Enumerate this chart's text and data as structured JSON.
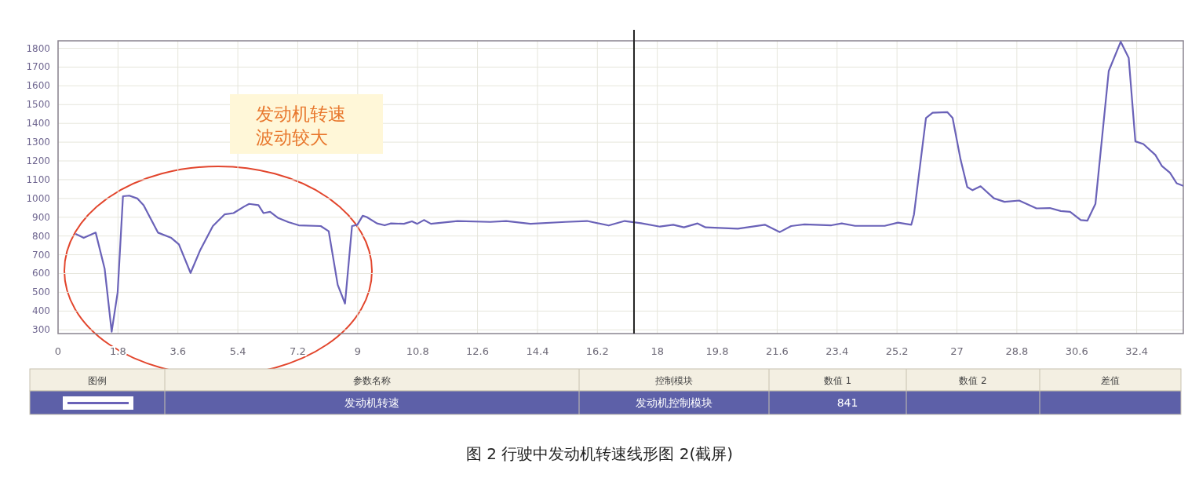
{
  "chart_data": {
    "type": "line",
    "title": "图 2  行驶中发动机转速线形图 2(截屏)",
    "annotations": [
      "发动机转速",
      "波动较大",
      "图例",
      "参数名称",
      "控制模块",
      "数值 1",
      "数值 2",
      "差值",
      "发动机控制模块",
      "841"
    ],
    "x": [
      0.54,
      0.77,
      1.13,
      1.4,
      1.61,
      1.79,
      1.95,
      2.14,
      2.38,
      2.57,
      3.0,
      3.4,
      3.63,
      3.98,
      4.26,
      4.65,
      5.0,
      5.27,
      5.59,
      5.74,
      6.02,
      6.17,
      6.37,
      6.6,
      6.92,
      7.23,
      7.89,
      8.13,
      8.4,
      8.62,
      8.83,
      8.99,
      9.15,
      9.27,
      9.58,
      9.81,
      10.0,
      10.39,
      10.63,
      10.79,
      10.99,
      11.2,
      12.0,
      12.98,
      13.46,
      14.19,
      15.24,
      15.89,
      16.54,
      17.02,
      17.51,
      18.08,
      18.48,
      18.8,
      19.21,
      19.45,
      20.42,
      21.23,
      21.68,
      22.02,
      22.42,
      23.23,
      23.54,
      23.94,
      24.83,
      25.23,
      25.63,
      25.71,
      26.07,
      26.27,
      26.71,
      26.87,
      27.11,
      27.31,
      27.47,
      27.71,
      28.11,
      28.43,
      28.87,
      29.39,
      29.79,
      30.12,
      30.4,
      30.72,
      30.92,
      31.16,
      31.56,
      31.92,
      32.16,
      32.36,
      32.6,
      32.96,
      33.16,
      33.4,
      33.6,
      33.8
    ],
    "series": [
      {
        "name": "发动机转速",
        "color": "#6a62b8",
        "values": [
          810,
          790,
          818,
          625,
          290,
          500,
          1012,
          1015,
          1000,
          964,
          818,
          790,
          755,
          603,
          721,
          853,
          915,
          922,
          957,
          971,
          964,
          922,
          929,
          897,
          874,
          857,
          853,
          825,
          540,
          440,
          853,
          860,
          908,
          901,
          867,
          857,
          867,
          865,
          878,
          865,
          885,
          865,
          880,
          875,
          880,
          865,
          875,
          880,
          856,
          880,
          868,
          850,
          860,
          846,
          867,
          846,
          839,
          860,
          821,
          853,
          862,
          857,
          867,
          854,
          854,
          871,
          860,
          915,
          1429,
          1457,
          1460,
          1429,
          1207,
          1061,
          1044,
          1065,
          1001,
          982,
          989,
          947,
          949,
          933,
          929,
          885,
          882,
          971,
          1679,
          1835,
          1749,
          1304,
          1290,
          1232,
          1172,
          1137,
          1081,
          1067
        ]
      }
    ],
    "xlim": [
      0,
      33.8
    ],
    "ylim": [
      280,
      1840
    ],
    "xticks": [
      0,
      1.8,
      3.6,
      5.4,
      7.2,
      9,
      10.8,
      12.6,
      14.4,
      16.2,
      18,
      19.8,
      21.6,
      23.4,
      25.2,
      27,
      28.8,
      30.6,
      32.4
    ],
    "yticks": [
      300,
      400,
      500,
      600,
      700,
      800,
      900,
      1000,
      1100,
      1200,
      1300,
      1400,
      1500,
      1600,
      1700,
      1800
    ],
    "ref_lines": [
      {
        "axis": "x",
        "value": 17.3,
        "color": "#222222"
      }
    ],
    "grid": true,
    "legend": "bottom"
  }
}
